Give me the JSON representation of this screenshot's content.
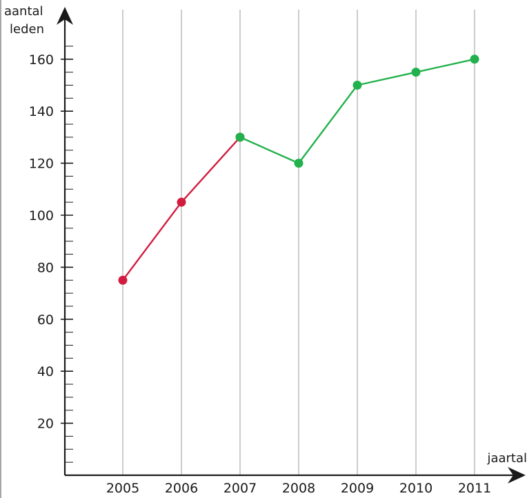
{
  "chart_data": {
    "type": "line",
    "xlabel": "jaartal",
    "ylabel_lines": [
      "aantal",
      "leden"
    ],
    "categories": [
      "2005",
      "2006",
      "2007",
      "2008",
      "2009",
      "2010",
      "2011"
    ],
    "ylim": [
      0,
      170
    ],
    "yticks": [
      20,
      40,
      60,
      80,
      100,
      120,
      140,
      160
    ],
    "y_minor_step": 5,
    "grid": "vertical lines at each year",
    "series": [
      {
        "color": "#d21c3f",
        "points": [
          {
            "x": "2005",
            "y": 75
          },
          {
            "x": "2006",
            "y": 105
          },
          {
            "x": "2007",
            "y": 130
          }
        ]
      },
      {
        "color": "#22b14c",
        "points": [
          {
            "x": "2007",
            "y": 130
          },
          {
            "x": "2008",
            "y": 120
          },
          {
            "x": "2009",
            "y": 150
          },
          {
            "x": "2010",
            "y": 155
          },
          {
            "x": "2011",
            "y": 160
          }
        ]
      }
    ]
  },
  "colors": {
    "axis": "#1a1a1a",
    "grid": "#aaaaaa",
    "frame": "#888888"
  }
}
